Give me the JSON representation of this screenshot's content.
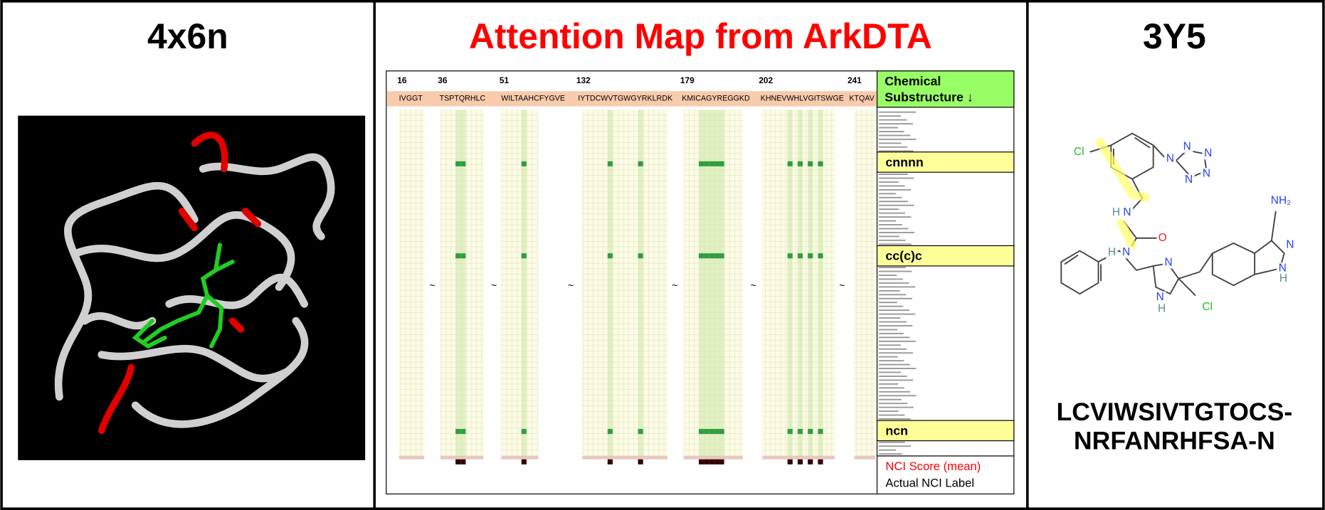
{
  "panels": {
    "left": {
      "title": "4x6n"
    },
    "middle": {
      "title": "Attention Map from ArkDTA",
      "positions": [
        16,
        36,
        51,
        132,
        179,
        202,
        241
      ],
      "segments": [
        "IVGGT",
        "TSPTQRHLC",
        "WILTAAHCFYGVE",
        "IYTDCWVTGWGYRKLRDK",
        "KMICAGYREGGKD",
        "KHNEVWHLVGITSWGE",
        "KTQAV"
      ],
      "separator": "~",
      "header": [
        "Chemical",
        "Substructure ↓"
      ],
      "substructures": [
        "cnnnn",
        "cc(c)c",
        "ncn"
      ],
      "legend": [
        "NCI Score (mean)",
        "Actual NCI Label"
      ]
    },
    "right": {
      "title": "3Y5",
      "sequence": [
        "LCVIWSIVTGTOCS-",
        "NRFANRHFSA-N"
      ],
      "atoms": [
        "Cl",
        "N",
        "N",
        "N",
        "N",
        "N",
        "H",
        "N",
        "O",
        "H",
        "N",
        "NH₂",
        "N",
        "N",
        "H",
        "N",
        "N",
        "H",
        "Cl"
      ]
    }
  }
}
